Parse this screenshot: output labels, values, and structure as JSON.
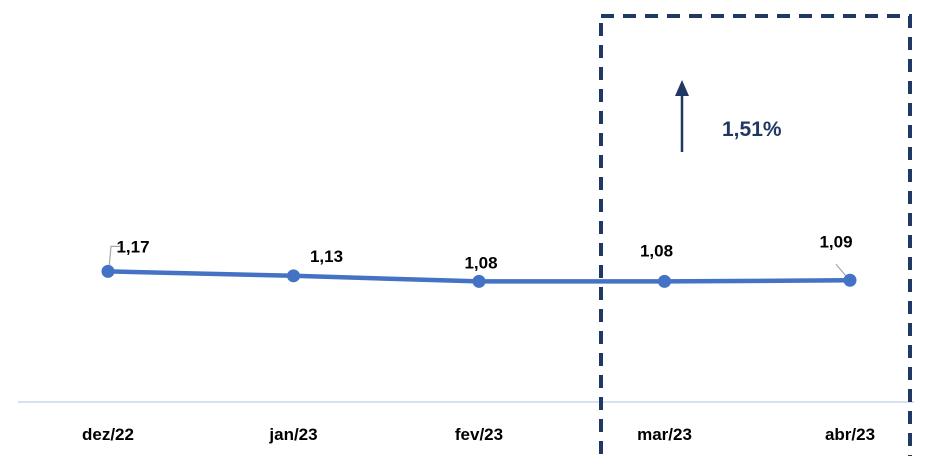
{
  "chart_data": {
    "type": "line",
    "categories": [
      "dez/22",
      "jan/23",
      "fev/23",
      "mar/23",
      "abr/23"
    ],
    "values": [
      1.17,
      1.13,
      1.08,
      1.08,
      1.09
    ],
    "data_labels": [
      "1,17",
      "1,13",
      "1,08",
      "1,08",
      "1,09"
    ],
    "title": "",
    "xlabel": "",
    "ylabel": "",
    "ylim": [
      0,
      3.6
    ],
    "grid": false,
    "legend": "none",
    "annotation": {
      "text": "1,51%",
      "arrow": "up",
      "highlight_categories": [
        "mar/23",
        "abr/23"
      ]
    },
    "colors": {
      "line": "#4472C4",
      "axis": "#C9D9EE",
      "box": "#1F3864",
      "annotation": "#1F3864"
    }
  }
}
